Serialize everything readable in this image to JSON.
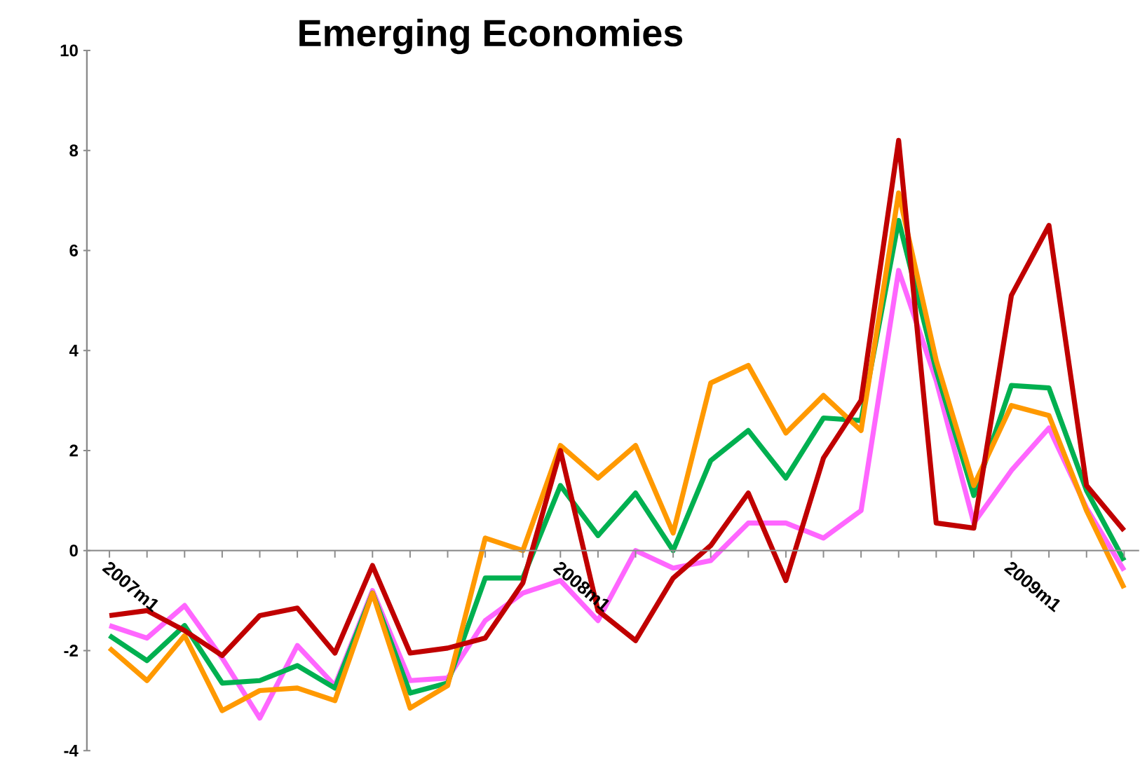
{
  "chart_data": {
    "type": "line",
    "title": "Emerging Economies",
    "categories": [
      "2007m1",
      null,
      null,
      null,
      null,
      null,
      null,
      null,
      null,
      null,
      null,
      null,
      "2008m1",
      null,
      null,
      null,
      null,
      null,
      null,
      null,
      null,
      null,
      null,
      null,
      "2009m1",
      null,
      null,
      null
    ],
    "series": [
      {
        "color": "#ff66ff",
        "values": [
          -1.5,
          -1.75,
          -1.1,
          -2.15,
          -3.35,
          -1.9,
          -2.7,
          -0.8,
          -2.6,
          -2.55,
          -1.4,
          -0.85,
          -0.6,
          -1.4,
          0.0,
          -0.35,
          -0.2,
          0.55,
          0.55,
          0.25,
          0.8,
          5.6,
          3.4,
          0.55,
          1.6,
          2.45,
          0.85,
          -0.4
        ]
      },
      {
        "color": "#00b050",
        "values": [
          -1.7,
          -2.2,
          -1.5,
          -2.65,
          -2.6,
          -2.3,
          -2.75,
          -0.85,
          -2.85,
          -2.65,
          -0.55,
          -0.55,
          1.3,
          0.3,
          1.15,
          0.0,
          1.8,
          2.4,
          1.45,
          2.65,
          2.6,
          6.6,
          3.6,
          1.1,
          3.3,
          3.25,
          1.2,
          -0.2
        ]
      },
      {
        "color": "#ff9900",
        "values": [
          -1.95,
          -2.6,
          -1.7,
          -3.2,
          -2.8,
          -2.75,
          -3.0,
          -0.85,
          -3.15,
          -2.7,
          0.25,
          0.0,
          2.1,
          1.45,
          2.1,
          0.35,
          3.35,
          3.7,
          2.35,
          3.1,
          2.4,
          7.15,
          3.8,
          1.3,
          2.9,
          2.7,
          0.8,
          -0.75
        ]
      },
      {
        "color": "#c00000",
        "values": [
          -1.3,
          -1.2,
          -1.6,
          -2.1,
          -1.3,
          -1.15,
          -2.05,
          -0.3,
          -2.05,
          -1.95,
          -1.75,
          -0.65,
          2.0,
          -1.2,
          -1.8,
          -0.55,
          0.1,
          1.15,
          -0.6,
          1.85,
          3.0,
          8.2,
          0.55,
          0.45,
          5.1,
          6.5,
          1.3,
          0.4
        ]
      }
    ],
    "ylim": [
      -4,
      10
    ],
    "yticks": [
      -4,
      -2,
      0,
      2,
      4,
      6,
      8,
      10
    ],
    "line_style": "solid"
  }
}
